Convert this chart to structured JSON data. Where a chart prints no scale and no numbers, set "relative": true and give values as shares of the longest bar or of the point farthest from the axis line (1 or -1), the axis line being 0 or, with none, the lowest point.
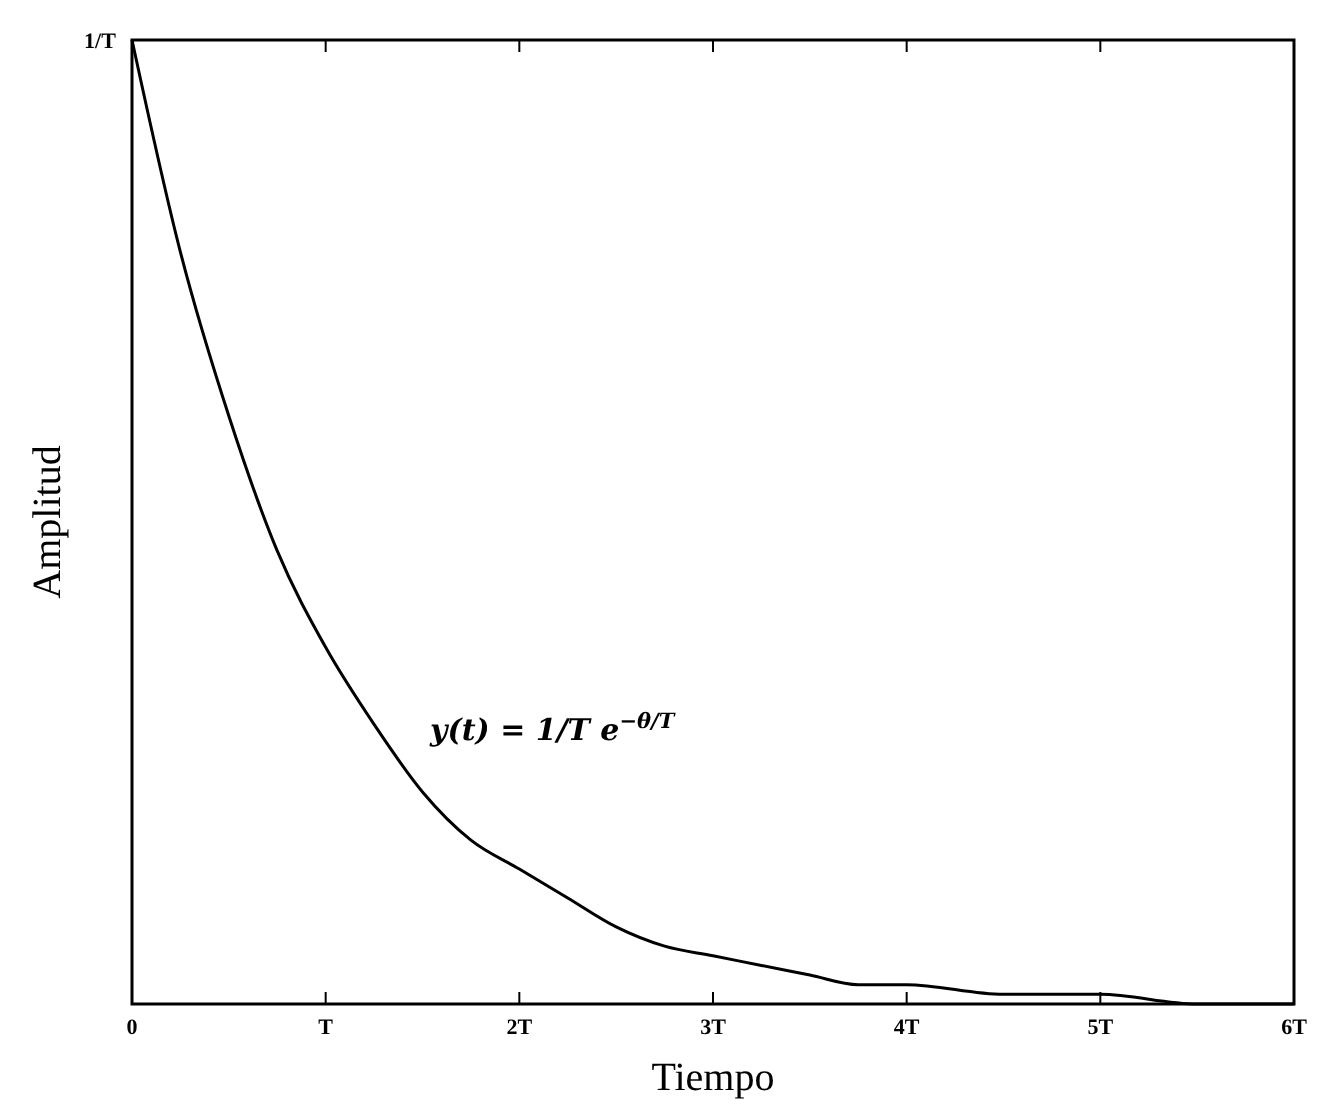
{
  "chart_data": {
    "type": "line",
    "xlabel": "Tiempo",
    "ylabel": "Amplitud",
    "x": [
      0,
      0.25,
      0.5,
      0.75,
      1,
      1.25,
      1.5,
      1.75,
      2,
      2.25,
      2.5,
      2.75,
      3,
      3.25,
      3.5,
      3.75,
      4,
      4.5,
      5,
      5.5,
      6
    ],
    "series": [
      {
        "name": "y(t) = 1/T e$^{−θ/T}$",
        "color": "#000000",
        "values": [
          1,
          0.78,
          0.61,
          0.47,
          0.37,
          0.29,
          0.22,
          0.17,
          0.14,
          0.11,
          0.08,
          0.06,
          0.05,
          0.04,
          0.03,
          0.02,
          0.02,
          0.01,
          0.01,
          0,
          0
        ]
      }
    ],
    "xlim": [
      0,
      6
    ],
    "xticks": [
      0,
      {
        "value": 1,
        "label": "T"
      },
      {
        "value": 2,
        "label": "2T"
      },
      {
        "value": 3,
        "label": "3T"
      },
      {
        "value": 4,
        "label": "4T"
      },
      {
        "value": 5,
        "label": "5T"
      },
      {
        "value": 6,
        "label": "6T"
      }
    ],
    "relative": true,
    "annotations": [
      {
        "text": "1/T",
        "x": 0,
        "y": 1
      }
    ],
    "grid": false,
    "legend": false,
    "marker": "none",
    "line_style": "solid"
  }
}
